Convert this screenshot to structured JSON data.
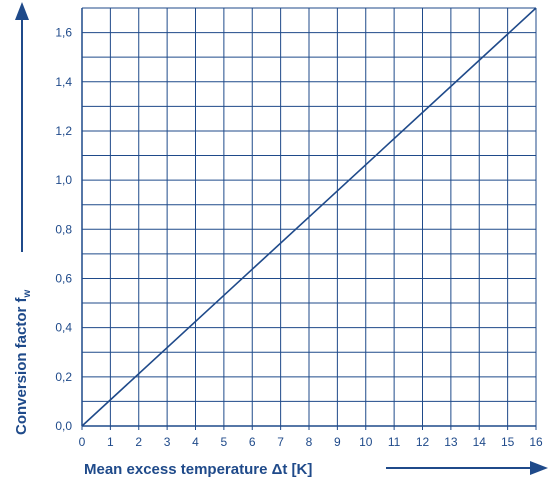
{
  "chart_data": {
    "type": "line",
    "title": "",
    "xlabel": "Mean excess temperature Δt [K]",
    "ylabel": "Conversion factor f",
    "ylabel_subscript": "w",
    "xlim": [
      0,
      16
    ],
    "ylim": [
      0,
      1.7
    ],
    "x_ticks": [
      0,
      1,
      2,
      3,
      4,
      5,
      6,
      7,
      8,
      9,
      10,
      11,
      12,
      13,
      14,
      15,
      16
    ],
    "x_tick_labels": [
      "0",
      "1",
      "2",
      "3",
      "4",
      "5",
      "6",
      "7",
      "8",
      "9",
      "10",
      "11",
      "12",
      "13",
      "14",
      "15",
      "16"
    ],
    "y_ticks": [
      0,
      0.2,
      0.4,
      0.6,
      0.8,
      1.0,
      1.2,
      1.4,
      1.6
    ],
    "y_tick_labels": [
      "0,0",
      "0,2",
      "0,4",
      "0,6",
      "0,8",
      "1,0",
      "1,2",
      "1,4",
      "1,6"
    ],
    "grid": true,
    "x_arrow": true,
    "y_arrow": true,
    "series": [
      {
        "x": [
          0,
          16
        ],
        "y": [
          0,
          1.7
        ]
      }
    ],
    "colors": {
      "line": "#1f4a8a",
      "grid": "#1f4a8a",
      "text": "#1f4a8a",
      "background": "#ffffff"
    }
  }
}
